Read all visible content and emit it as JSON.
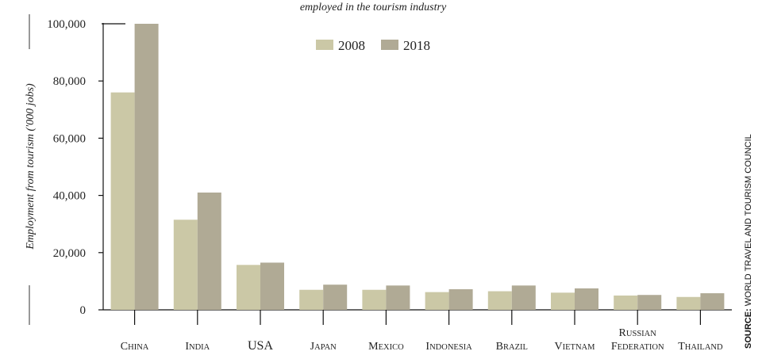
{
  "chart_data": {
    "type": "bar",
    "subtitle": "employed in the tourism industry",
    "ylabel": "Employment from tourism ('000 jobs)",
    "ylim": [
      0,
      100000
    ],
    "yticks": [
      0,
      20000,
      40000,
      60000,
      80000,
      100000
    ],
    "ytick_labels": [
      "0",
      "20,000",
      "40,000",
      "60,000",
      "80,000",
      "100,000"
    ],
    "grid": false,
    "legend": "top-center",
    "categories": [
      {
        "first": "C",
        "rest": "HINA"
      },
      {
        "first": "I",
        "rest": "NDIA"
      },
      {
        "first": "USA",
        "rest": ""
      },
      {
        "first": "J",
        "rest": "APAN"
      },
      {
        "first": "M",
        "rest": "EXICO"
      },
      {
        "first": "I",
        "rest": "NDONESIA"
      },
      {
        "first": "B",
        "rest": "RAZIL"
      },
      {
        "first": "V",
        "rest": "IETNAM"
      },
      {
        "first": "R",
        "rest": "USSIAN",
        "first2": "F",
        "rest2": "EDERATION"
      },
      {
        "first": "T",
        "rest": "HAILAND"
      }
    ],
    "series": [
      {
        "name": "2008",
        "color": "#cbc8a6",
        "values": [
          76000,
          31500,
          15700,
          7000,
          7000,
          6200,
          6500,
          6000,
          5000,
          4500
        ]
      },
      {
        "name": "2018",
        "color": "#b0aa95",
        "values": [
          100000,
          41000,
          16500,
          8800,
          8500,
          7200,
          8500,
          7500,
          5200,
          5800
        ]
      }
    ],
    "source_label": "SOURCE:",
    "source_text": "WORLD TRAVEL AND TOURISM COUNCIL"
  }
}
